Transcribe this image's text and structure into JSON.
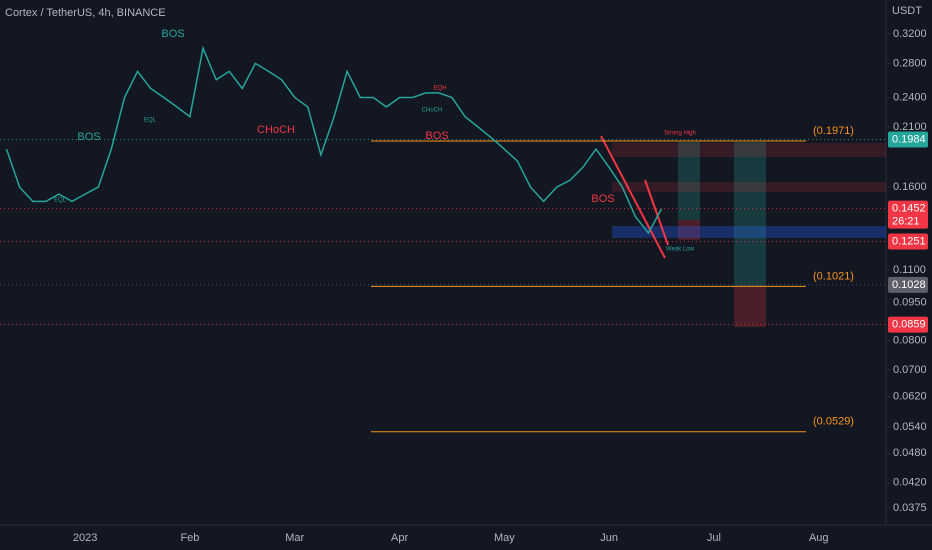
{
  "chart_data": {
    "type": "line",
    "title": "Cortex / TetherUS, 4h, BINANCE",
    "unit": "USDT",
    "log_scale": true,
    "grid": false,
    "color": "#26a69a",
    "categories": [
      null,
      null,
      null,
      null,
      null,
      null,
      "2023",
      null,
      null,
      null,
      null,
      null,
      null,
      null,
      "Feb",
      null,
      null,
      null,
      null,
      null,
      null,
      null,
      "Mar",
      null,
      null,
      null,
      null,
      null,
      null,
      null,
      "Apr",
      null,
      null,
      null,
      null,
      null,
      null,
      null,
      "May",
      null,
      null,
      null,
      null,
      null,
      null,
      null,
      "Jun",
      null,
      null,
      null,
      null,
      null,
      null,
      null,
      "Jul",
      null,
      null,
      null,
      null,
      null,
      null,
      null,
      "Aug",
      null,
      null,
      null,
      null
    ],
    "values": [
      0.19,
      0.16,
      0.15,
      0.15,
      0.155,
      0.15,
      0.155,
      0.16,
      0.19,
      0.24,
      0.27,
      0.25,
      0.24,
      0.23,
      0.22,
      0.3,
      0.26,
      0.27,
      0.25,
      0.28,
      0.27,
      0.26,
      0.24,
      0.23,
      0.185,
      0.22,
      0.27,
      0.24,
      0.24,
      0.23,
      0.24,
      0.24,
      0.245,
      0.245,
      0.24,
      0.22,
      0.21,
      0.2,
      0.19,
      0.18,
      0.16,
      0.15,
      0.16,
      0.165,
      0.175,
      0.19,
      0.175,
      0.16,
      0.14,
      0.13,
      0.145,
      null,
      null,
      null,
      null,
      null,
      null,
      null,
      null,
      null,
      null,
      null,
      null,
      null,
      null,
      null,
      null
    ],
    "ylim": [
      0.0347,
      0.373
    ],
    "yticks": [
      {
        "value": 0.32,
        "label": "0.3200"
      },
      {
        "value": 0.28,
        "label": "0.2800"
      },
      {
        "value": 0.24,
        "label": "0.2400"
      },
      {
        "value": 0.21,
        "label": "0.2100"
      },
      {
        "value": 0.16,
        "label": "0.1600"
      },
      {
        "value": 0.11,
        "label": "0.1100"
      },
      {
        "value": 0.095,
        "label": "0.0950"
      },
      {
        "value": 0.08,
        "label": "0.0800"
      },
      {
        "value": 0.07,
        "label": "0.0700"
      },
      {
        "value": 0.062,
        "label": "0.0620"
      },
      {
        "value": 0.054,
        "label": "0.0540"
      },
      {
        "value": 0.048,
        "label": "0.0480"
      },
      {
        "value": 0.042,
        "label": "0.0420"
      },
      {
        "value": 0.0375,
        "label": "0.0375"
      }
    ],
    "price_tags": [
      {
        "value": 0.1984,
        "color": "#26a69a"
      },
      {
        "value": 0.1452,
        "color": "#f23645"
      },
      {
        "value": 0.1251,
        "color": "#f23645"
      },
      {
        "value": 0.1028,
        "color": "#5d606b"
      },
      {
        "value": 0.0859,
        "color": "#f23645"
      }
    ],
    "countdown": "26:21",
    "fib_levels": [
      {
        "value": 0.1971,
        "label": "(0.1971)"
      },
      {
        "value": 0.1021,
        "label": "(0.1021)"
      },
      {
        "value": 0.0529,
        "label": "(0.0529)"
      }
    ],
    "annotations": [
      "BOS",
      "BOS",
      "CHoCH",
      "BOS",
      "BOS",
      "Strong High",
      "Weak Low",
      "EQL",
      "EQH",
      "CHoCH",
      "EQL"
    ]
  }
}
